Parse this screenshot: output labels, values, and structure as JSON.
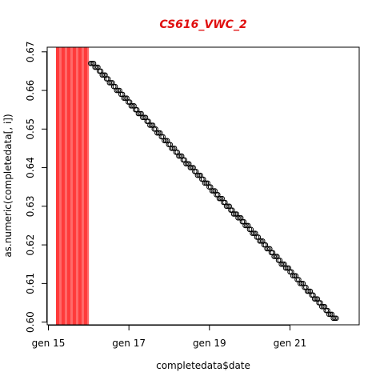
{
  "chart_data": {
    "type": "scatter",
    "title": "CS616_VWC_2",
    "title_color": "#e01010",
    "xlabel": "completedata$date",
    "ylabel": "as.numeric(completedata[, i])",
    "x_unit": "days",
    "x_ticks": [
      {
        "day": 15,
        "label": "gen 15"
      },
      {
        "day": 17,
        "label": "gen 17"
      },
      {
        "day": 19,
        "label": "gen 19"
      },
      {
        "day": 21,
        "label": "gen 21"
      }
    ],
    "xlim": [
      14.97,
      22.72
    ],
    "ylim": [
      0.5993,
      0.6712
    ],
    "y_ticks": [
      0.6,
      0.61,
      0.62,
      0.63,
      0.64,
      0.65,
      0.66,
      0.67
    ],
    "y_tick_labels": [
      "0.60",
      "0.61",
      "0.62",
      "0.63",
      "0.64",
      "0.65",
      "0.66",
      "0.67"
    ],
    "highlight_band": {
      "from": 15.2,
      "to": 16.0,
      "color": "#ff3b3b"
    },
    "point_color": "#000000",
    "grid": false,
    "points": {
      "x_start": 16.05,
      "x_end": 22.15,
      "y_start": 0.667,
      "y_end": 0.601,
      "step": 0.001
    }
  }
}
